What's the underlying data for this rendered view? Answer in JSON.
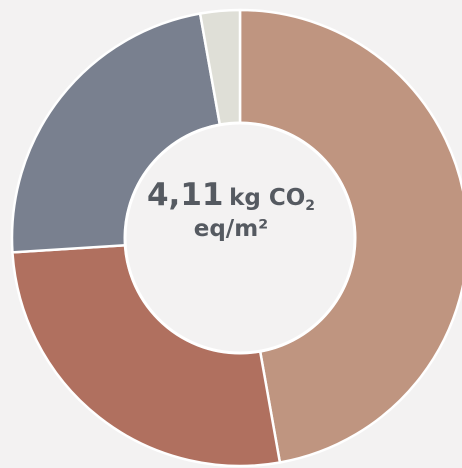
{
  "chart_data": {
    "type": "pie",
    "style": "donut",
    "center_label": {
      "value": "4,11",
      "unit": "kg CO",
      "subscript": "2",
      "line2": "eq/m²"
    },
    "slices": [
      {
        "value": 47.2,
        "color": "#bf9580"
      },
      {
        "value": 26.8,
        "color": "#b0705f"
      },
      {
        "value": 23.2,
        "color": "#79808f"
      },
      {
        "value": 2.8,
        "color": "#dfdfd7"
      }
    ]
  }
}
